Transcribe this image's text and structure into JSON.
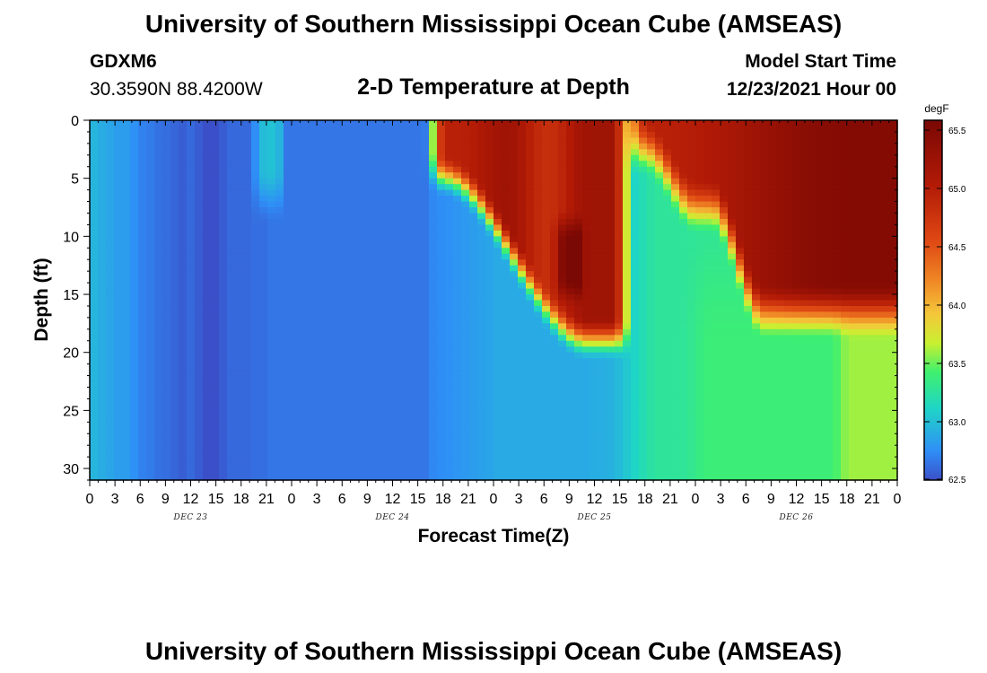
{
  "page": {
    "title": "University of Southern Mississippi Ocean Cube (AMSEAS)",
    "footer_title": "University of Southern Mississippi Ocean Cube (AMSEAS)",
    "station_id": "GDXM6",
    "station_coords": "30.3590N  88.4200W",
    "subtitle": "2-D Temperature at Depth",
    "model_start_label": "Model Start Time",
    "model_start_value": "12/23/2021 Hour 00"
  },
  "chart_data": {
    "type": "heatmap",
    "xlabel": "Forecast Time(Z)",
    "ylabel": "Depth (ft)",
    "x_tick_labels": [
      "0",
      "3",
      "6",
      "9",
      "12",
      "15",
      "18",
      "21",
      "0",
      "3",
      "6",
      "9",
      "12",
      "15",
      "18",
      "21",
      "0",
      "3",
      "6",
      "9",
      "12",
      "15",
      "18",
      "21",
      "0",
      "3",
      "6",
      "9",
      "12",
      "15",
      "18",
      "21",
      "0"
    ],
    "day_labels": [
      {
        "label": "DEC 23",
        "hour": 12
      },
      {
        "label": "DEC 24",
        "hour": 36
      },
      {
        "label": "DEC 25",
        "hour": 60
      },
      {
        "label": "DEC 26",
        "hour": 84
      }
    ],
    "x_range_hours": [
      0,
      96
    ],
    "y_ticks": [
      0,
      5,
      10,
      15,
      20,
      25,
      30
    ],
    "y_range_ft": [
      0,
      31
    ],
    "colorbar": {
      "unit": "degF",
      "ticks": [
        "65.5",
        "65.0",
        "64.5",
        "64.0",
        "63.5",
        "63.0",
        "62.5"
      ],
      "range": [
        62.5,
        65.5
      ]
    },
    "temperature_summary": [
      {
        "hours": "0-3",
        "depth": "all",
        "value_degF": 62.95
      },
      {
        "hours": "13-16",
        "depth": "all",
        "value_degF": 62.55
      },
      {
        "hours": "20-23",
        "depth": "0-8 ft",
        "value_degF": 62.95
      },
      {
        "hours": "24-40",
        "depth": "all",
        "value_degF": 62.7
      },
      {
        "hours": "40-64",
        "depth": "deep",
        "value_degF": 62.85
      },
      {
        "hours": "41-56",
        "depth": "surface layer",
        "value_degF": 65.1
      },
      {
        "hours": "72-90",
        "depth": "deep",
        "value_degF": 63.35
      },
      {
        "hours": "80-96",
        "depth": "0-5 ft",
        "value_degF": 65.3
      },
      {
        "hours": "88-96",
        "depth": "deep",
        "value_degF": 63.9
      }
    ]
  }
}
